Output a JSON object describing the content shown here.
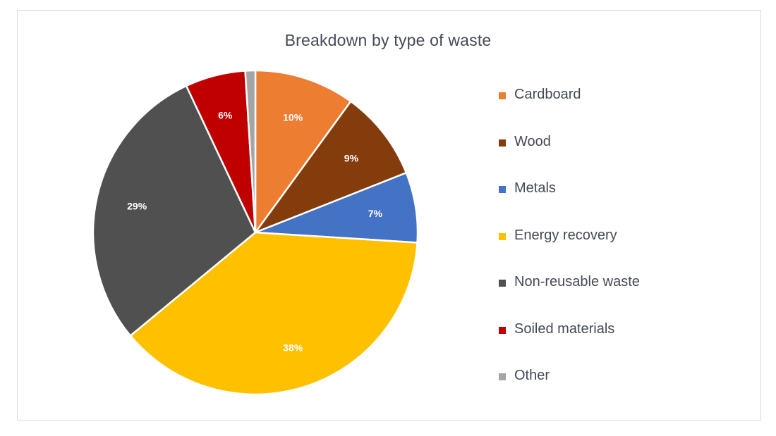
{
  "chart_data": {
    "type": "pie",
    "title": "Breakdown by type of waste",
    "categories": [
      "Cardboard",
      "Wood",
      "Metals",
      "Energy recovery",
      "Non-reusable waste",
      "Soiled materials",
      "Other"
    ],
    "values": [
      10,
      9,
      7,
      38,
      29,
      6,
      1
    ],
    "data_labels": [
      "10%",
      "9%",
      "7%",
      "38%",
      "29%",
      "6%",
      ""
    ],
    "colors": [
      "#ED7D31",
      "#843C0C",
      "#4472C4",
      "#FFC000",
      "#505050",
      "#C00000",
      "#A5A5A5"
    ],
    "legend_position": "right"
  }
}
